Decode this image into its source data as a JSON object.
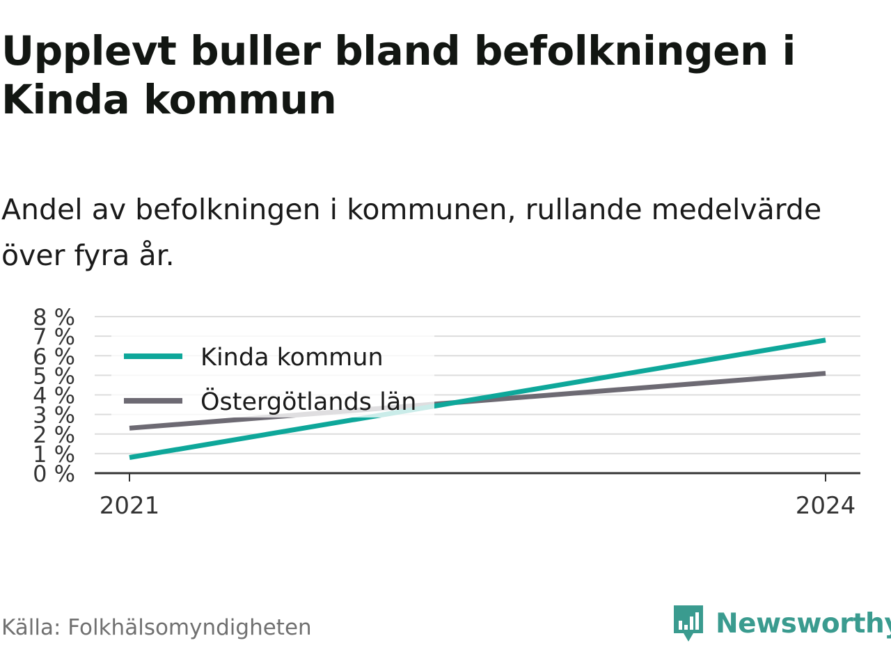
{
  "title": "Upplevt buller bland befolkningen i Kinda kommun",
  "subtitle": "Andel av befolkningen i kommunen, rullande medelvärde över fyra år.",
  "source": "Källa: Folkhälsomyndigheten",
  "brand": {
    "name": "Newsworthy",
    "icon": "newsworthy-logo-icon",
    "color": "#3a9b8f"
  },
  "chart_data": {
    "type": "line",
    "x": [
      "2021",
      "2024"
    ],
    "xticks": [
      "2021",
      "2024"
    ],
    "yticks": [
      "0 %",
      "1 %",
      "2 %",
      "3 %",
      "4 %",
      "5 %",
      "6 %",
      "7 %",
      "8 %"
    ],
    "ylim": [
      0,
      8
    ],
    "grid": true,
    "legend_position": "top-left",
    "series": [
      {
        "name": "Kinda kommun",
        "values": [
          0.8,
          6.8
        ],
        "color": "#0ea79a"
      },
      {
        "name": "Östergötlands län",
        "values": [
          2.3,
          5.1
        ],
        "color": "#6d6a73"
      }
    ]
  }
}
